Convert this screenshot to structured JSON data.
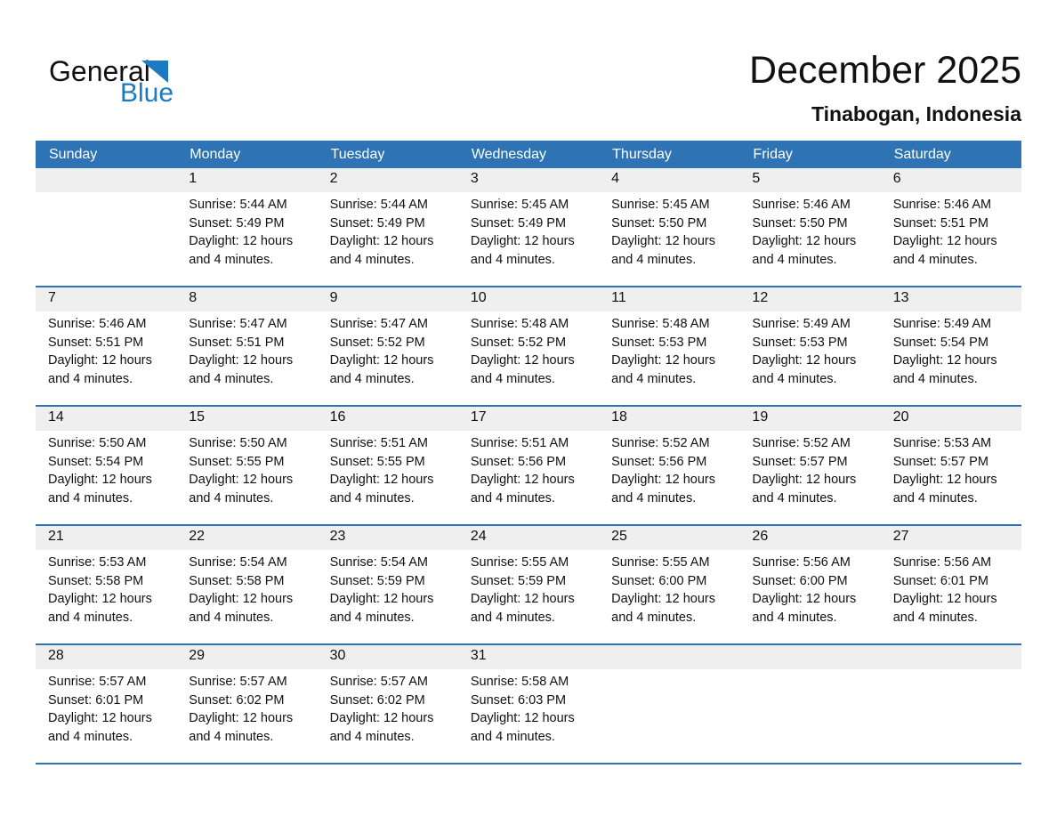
{
  "logo": {
    "word_top": "General",
    "word_bottom": "Blue"
  },
  "header": {
    "title": "December 2025",
    "location": "Tinabogan, Indonesia"
  },
  "colors": {
    "header_blue": "#2e74b5",
    "row_line_blue": "#2e74b5",
    "band_gray": "#efefef",
    "logo_blue": "#1b7ac1"
  },
  "calendar": {
    "weekdays": [
      "Sunday",
      "Monday",
      "Tuesday",
      "Wednesday",
      "Thursday",
      "Friday",
      "Saturday"
    ],
    "labels": {
      "sunrise": "Sunrise:",
      "sunset": "Sunset:",
      "daylight": "Daylight:"
    },
    "weeks": [
      [
        null,
        {
          "day": "1",
          "sunrise": "5:44 AM",
          "sunset": "5:49 PM",
          "daylight": "12 hours and 4 minutes."
        },
        {
          "day": "2",
          "sunrise": "5:44 AM",
          "sunset": "5:49 PM",
          "daylight": "12 hours and 4 minutes."
        },
        {
          "day": "3",
          "sunrise": "5:45 AM",
          "sunset": "5:49 PM",
          "daylight": "12 hours and 4 minutes."
        },
        {
          "day": "4",
          "sunrise": "5:45 AM",
          "sunset": "5:50 PM",
          "daylight": "12 hours and 4 minutes."
        },
        {
          "day": "5",
          "sunrise": "5:46 AM",
          "sunset": "5:50 PM",
          "daylight": "12 hours and 4 minutes."
        },
        {
          "day": "6",
          "sunrise": "5:46 AM",
          "sunset": "5:51 PM",
          "daylight": "12 hours and 4 minutes."
        }
      ],
      [
        {
          "day": "7",
          "sunrise": "5:46 AM",
          "sunset": "5:51 PM",
          "daylight": "12 hours and 4 minutes."
        },
        {
          "day": "8",
          "sunrise": "5:47 AM",
          "sunset": "5:51 PM",
          "daylight": "12 hours and 4 minutes."
        },
        {
          "day": "9",
          "sunrise": "5:47 AM",
          "sunset": "5:52 PM",
          "daylight": "12 hours and 4 minutes."
        },
        {
          "day": "10",
          "sunrise": "5:48 AM",
          "sunset": "5:52 PM",
          "daylight": "12 hours and 4 minutes."
        },
        {
          "day": "11",
          "sunrise": "5:48 AM",
          "sunset": "5:53 PM",
          "daylight": "12 hours and 4 minutes."
        },
        {
          "day": "12",
          "sunrise": "5:49 AM",
          "sunset": "5:53 PM",
          "daylight": "12 hours and 4 minutes."
        },
        {
          "day": "13",
          "sunrise": "5:49 AM",
          "sunset": "5:54 PM",
          "daylight": "12 hours and 4 minutes."
        }
      ],
      [
        {
          "day": "14",
          "sunrise": "5:50 AM",
          "sunset": "5:54 PM",
          "daylight": "12 hours and 4 minutes."
        },
        {
          "day": "15",
          "sunrise": "5:50 AM",
          "sunset": "5:55 PM",
          "daylight": "12 hours and 4 minutes."
        },
        {
          "day": "16",
          "sunrise": "5:51 AM",
          "sunset": "5:55 PM",
          "daylight": "12 hours and 4 minutes."
        },
        {
          "day": "17",
          "sunrise": "5:51 AM",
          "sunset": "5:56 PM",
          "daylight": "12 hours and 4 minutes."
        },
        {
          "day": "18",
          "sunrise": "5:52 AM",
          "sunset": "5:56 PM",
          "daylight": "12 hours and 4 minutes."
        },
        {
          "day": "19",
          "sunrise": "5:52 AM",
          "sunset": "5:57 PM",
          "daylight": "12 hours and 4 minutes."
        },
        {
          "day": "20",
          "sunrise": "5:53 AM",
          "sunset": "5:57 PM",
          "daylight": "12 hours and 4 minutes."
        }
      ],
      [
        {
          "day": "21",
          "sunrise": "5:53 AM",
          "sunset": "5:58 PM",
          "daylight": "12 hours and 4 minutes."
        },
        {
          "day": "22",
          "sunrise": "5:54 AM",
          "sunset": "5:58 PM",
          "daylight": "12 hours and 4 minutes."
        },
        {
          "day": "23",
          "sunrise": "5:54 AM",
          "sunset": "5:59 PM",
          "daylight": "12 hours and 4 minutes."
        },
        {
          "day": "24",
          "sunrise": "5:55 AM",
          "sunset": "5:59 PM",
          "daylight": "12 hours and 4 minutes."
        },
        {
          "day": "25",
          "sunrise": "5:55 AM",
          "sunset": "6:00 PM",
          "daylight": "12 hours and 4 minutes."
        },
        {
          "day": "26",
          "sunrise": "5:56 AM",
          "sunset": "6:00 PM",
          "daylight": "12 hours and 4 minutes."
        },
        {
          "day": "27",
          "sunrise": "5:56 AM",
          "sunset": "6:01 PM",
          "daylight": "12 hours and 4 minutes."
        }
      ],
      [
        {
          "day": "28",
          "sunrise": "5:57 AM",
          "sunset": "6:01 PM",
          "daylight": "12 hours and 4 minutes."
        },
        {
          "day": "29",
          "sunrise": "5:57 AM",
          "sunset": "6:02 PM",
          "daylight": "12 hours and 4 minutes."
        },
        {
          "day": "30",
          "sunrise": "5:57 AM",
          "sunset": "6:02 PM",
          "daylight": "12 hours and 4 minutes."
        },
        {
          "day": "31",
          "sunrise": "5:58 AM",
          "sunset": "6:03 PM",
          "daylight": "12 hours and 4 minutes."
        },
        null,
        null,
        null
      ]
    ]
  }
}
